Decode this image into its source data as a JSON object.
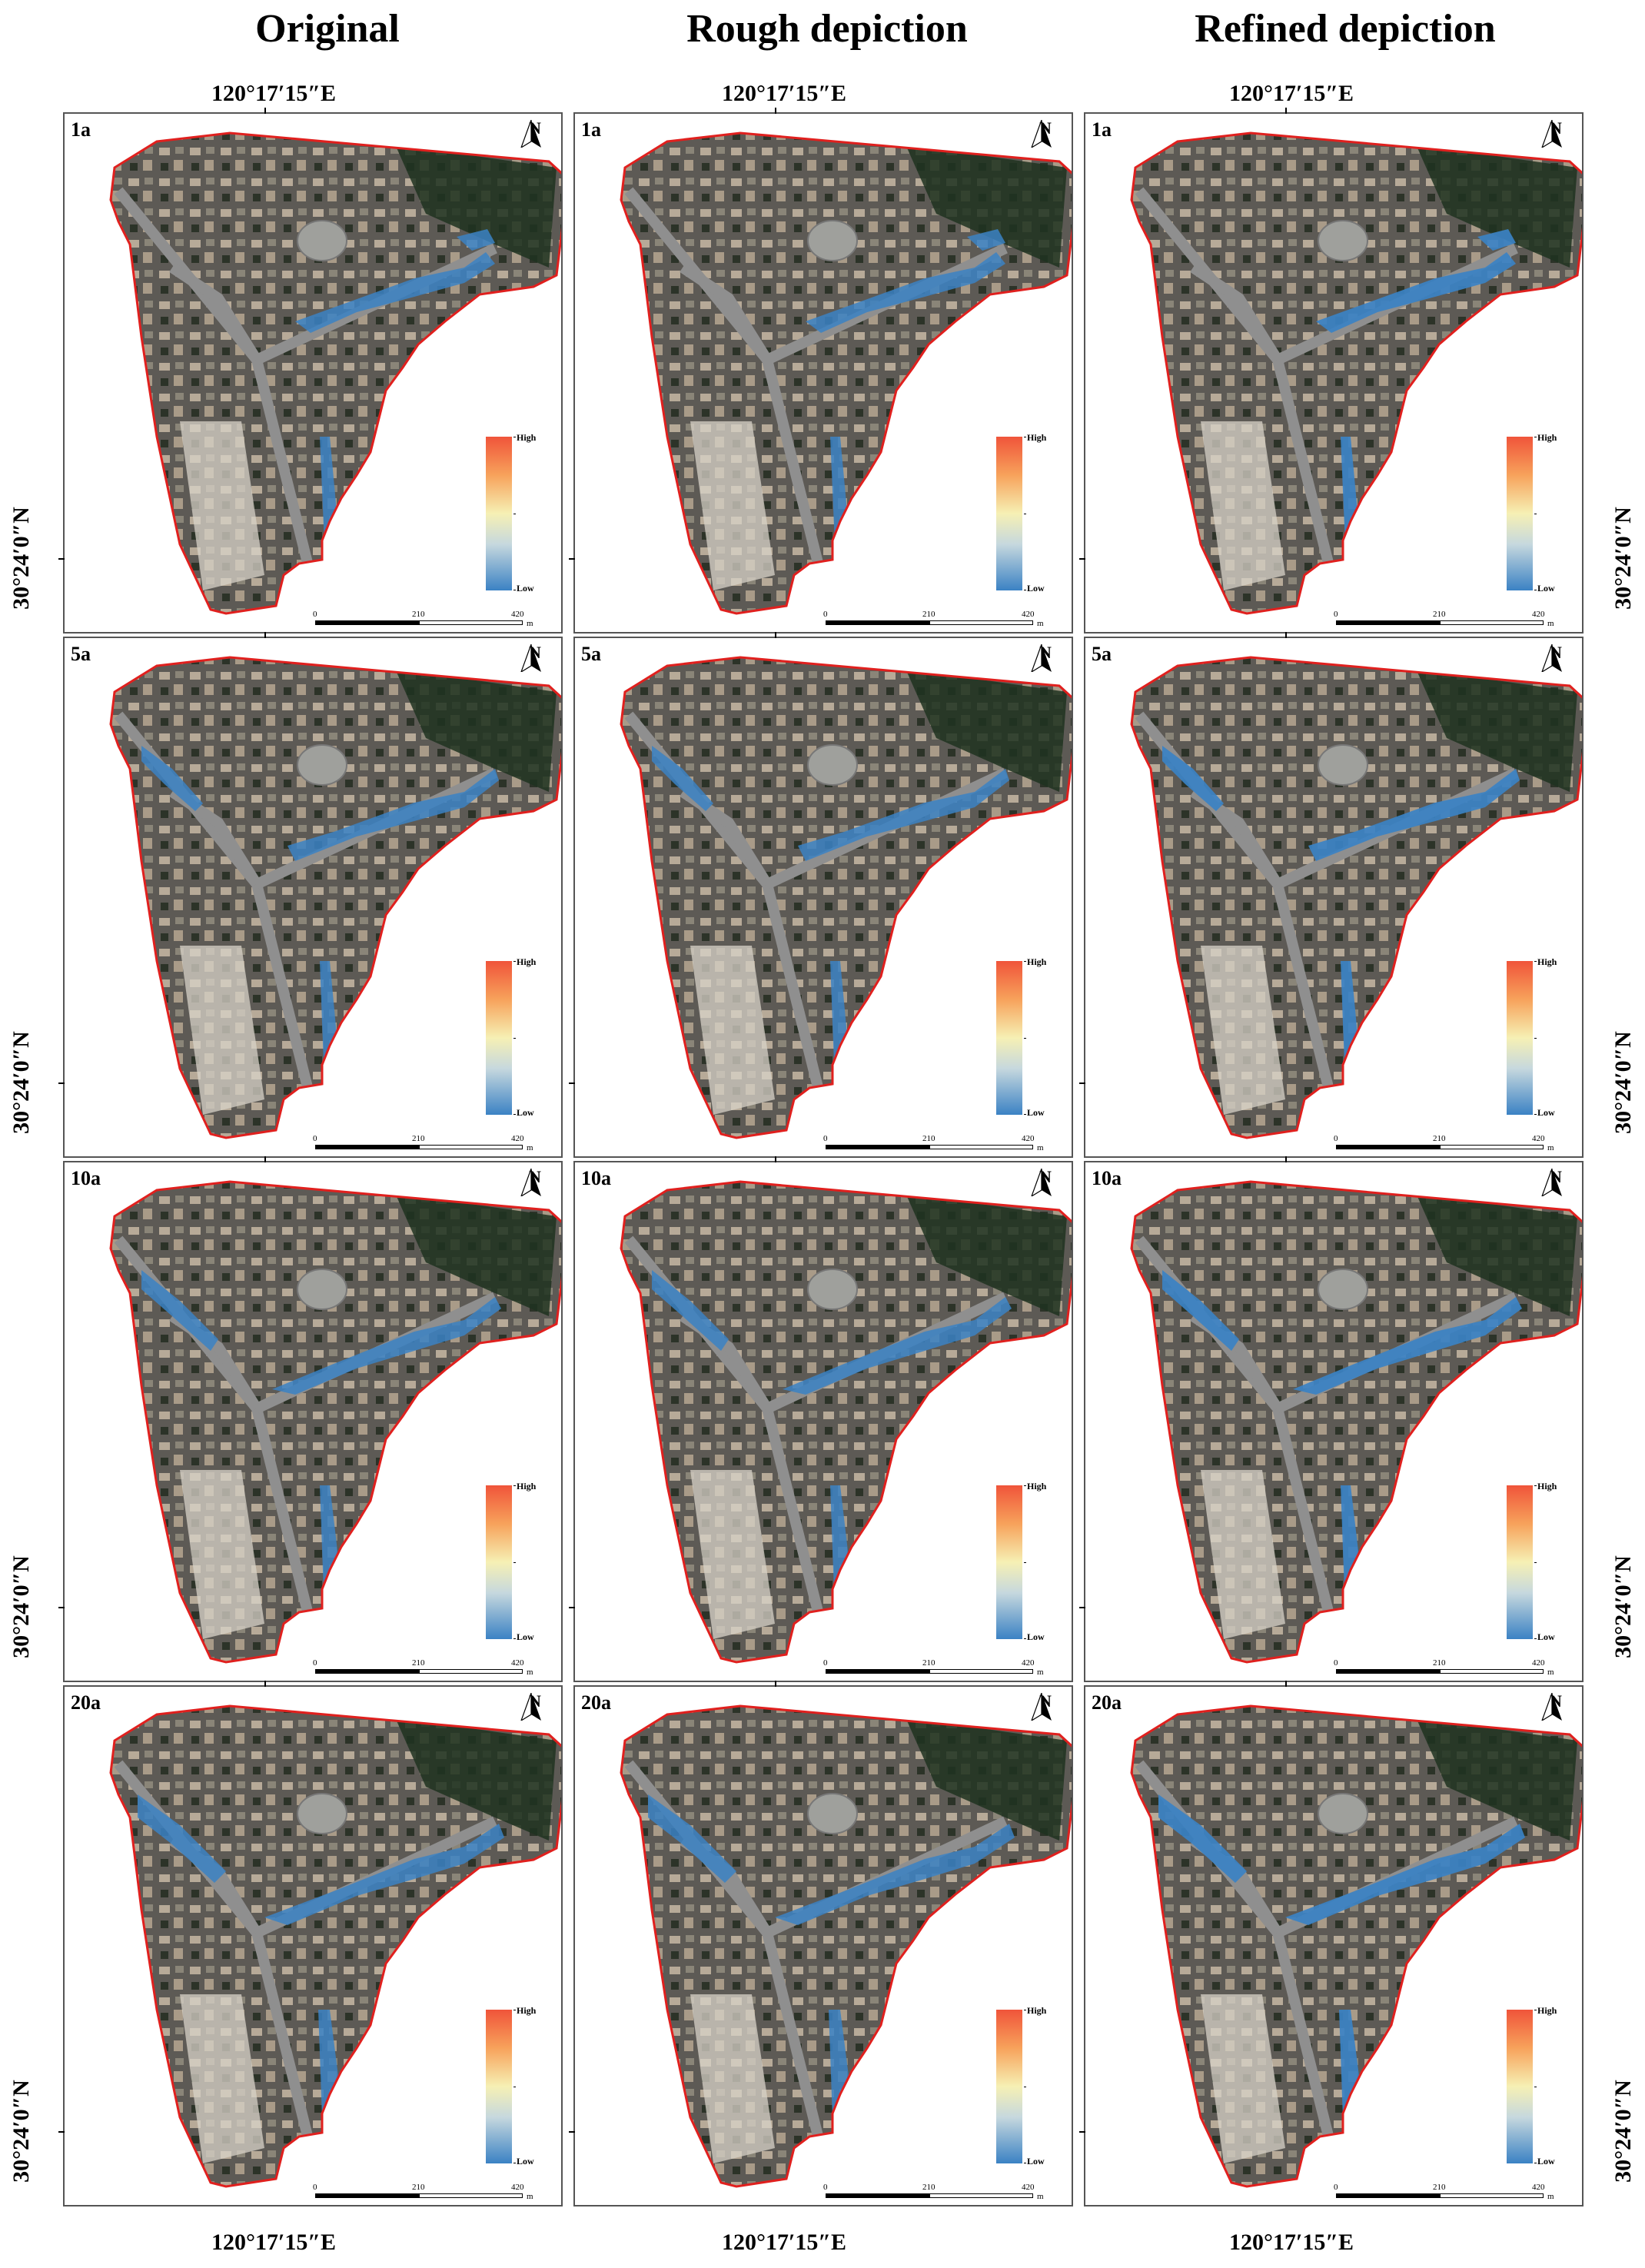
{
  "figure": {
    "columns": [
      "Original",
      "Rough depiction",
      "Refined depiction"
    ],
    "longitude_label": "120°17′15″E",
    "latitude_label": "30°24′0″N",
    "rows": [
      "1a",
      "5a",
      "10a",
      "20a"
    ]
  },
  "map_elements": {
    "north_arrow": "N",
    "legend_high": "High",
    "legend_low": "Low",
    "scale_ticks": [
      "0",
      "210",
      "420"
    ],
    "scale_unit": "m"
  },
  "colors": {
    "boundary": "#e0201e",
    "hotspot_blue": "#3b82c4",
    "legend_high": "#f0543a",
    "legend_mid": "#f6f0b4",
    "legend_low": "#3b82c4"
  },
  "icons": [
    "north-arrow-icon"
  ]
}
